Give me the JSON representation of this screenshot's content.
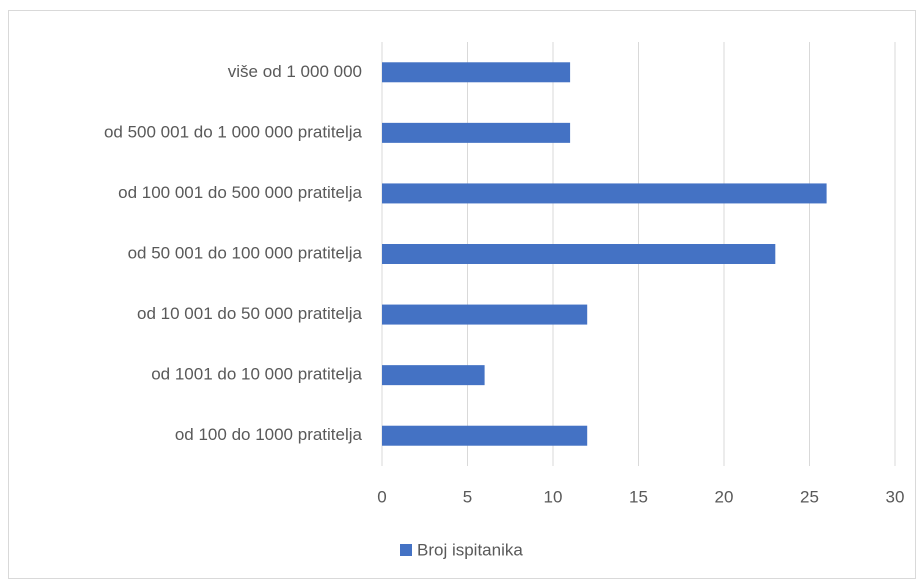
{
  "chart_data": {
    "type": "bar",
    "orientation": "horizontal",
    "categories": [
      "više od 1 000 000",
      "od 500 001 do 1 000 000 pratitelja",
      "od 100 001 do 500 000 pratitelja",
      "od 50 001 do 100 000 pratitelja",
      "od 10 001 do 50 000 pratitelja",
      "od 1001 do 10 000 pratitelja",
      "od 100 do 1000 pratitelja"
    ],
    "series": [
      {
        "name": "Broj ispitanika",
        "color": "#4472c4",
        "values": [
          11,
          11,
          26,
          23,
          12,
          6,
          12
        ]
      }
    ],
    "xlim": [
      0,
      30
    ],
    "xticks": [
      0,
      5,
      10,
      15,
      20,
      25,
      30
    ],
    "grid": true,
    "legend": "bottom"
  }
}
